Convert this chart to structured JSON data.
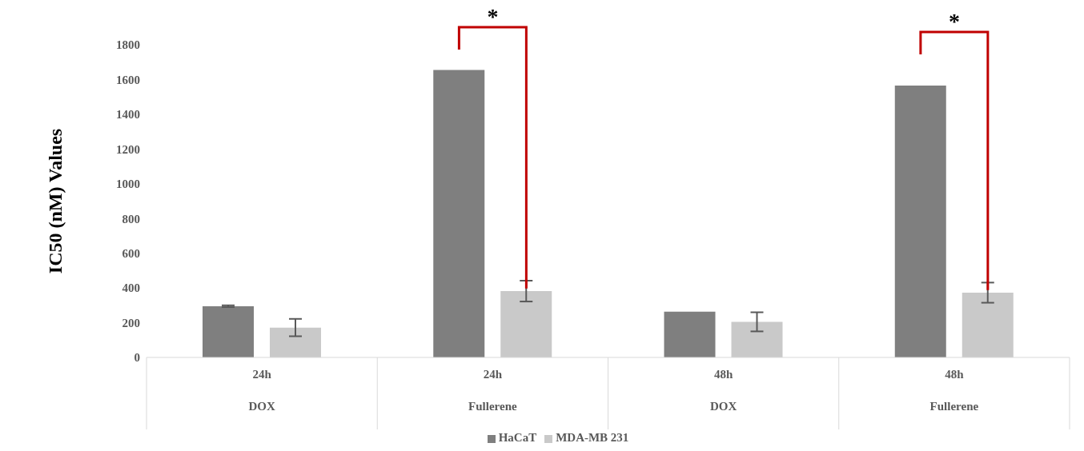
{
  "chart_data": {
    "type": "bar",
    "ylabel": "IC50 (nM) Values",
    "categories": [
      "24h\nDOX",
      "24h\nFullerene",
      "48h\nDOX",
      "48h\nFullerene"
    ],
    "series": [
      {
        "name": "HaCaT",
        "color": "#7f7f7f",
        "values": [
          295,
          1655,
          263,
          1565
        ],
        "errors": [
          5,
          null,
          null,
          null
        ]
      },
      {
        "name": "MDA-MB 231",
        "color": "#c9c9c9",
        "values": [
          172,
          382,
          205,
          373
        ],
        "errors": [
          50,
          60,
          55,
          58
        ]
      }
    ],
    "ylim": [
      0,
      1800
    ],
    "yticks": [
      0,
      200,
      400,
      600,
      800,
      1000,
      1200,
      1400,
      1600,
      1800
    ],
    "legend": "bottom",
    "annotations": [
      "*",
      "*"
    ]
  }
}
